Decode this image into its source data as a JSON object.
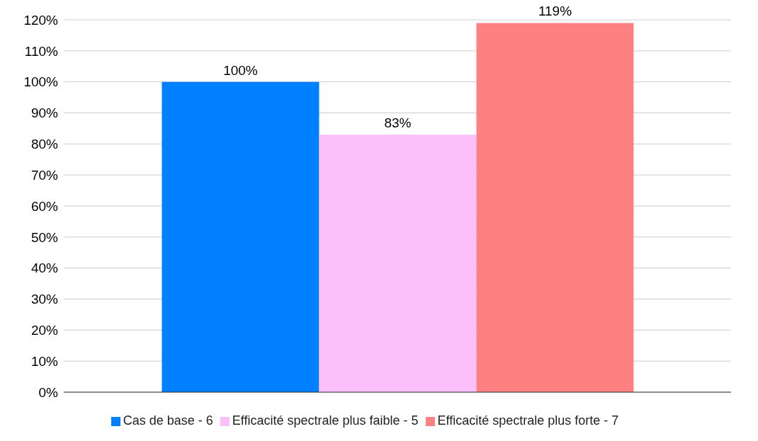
{
  "chart_data": {
    "type": "bar",
    "categories": [
      null
    ],
    "series": [
      {
        "name": "Cas de base - 6",
        "color": "#0080ff",
        "values": [
          100
        ],
        "value_labels": [
          "100%"
        ]
      },
      {
        "name": "Efficacité spectrale plus faible - 5",
        "color": "#fbc0fc",
        "values": [
          83
        ],
        "value_labels": [
          "83%"
        ]
      },
      {
        "name": "Efficacité spectrale plus forte - 7",
        "color": "#ff8080",
        "values": [
          119
        ],
        "value_labels": [
          "119%"
        ]
      }
    ],
    "ylim": [
      0,
      120
    ],
    "yticks": [
      {
        "value": 0,
        "label": "0%"
      },
      {
        "value": 10,
        "label": "10%"
      },
      {
        "value": 20,
        "label": "20%"
      },
      {
        "value": 30,
        "label": "30%"
      },
      {
        "value": 40,
        "label": "40%"
      },
      {
        "value": 50,
        "label": "50%"
      },
      {
        "value": 60,
        "label": "60%"
      },
      {
        "value": 70,
        "label": "70%"
      },
      {
        "value": 80,
        "label": "80%"
      },
      {
        "value": 90,
        "label": "90%"
      },
      {
        "value": 100,
        "label": "100%"
      },
      {
        "value": 110,
        "label": "110%"
      },
      {
        "value": 120,
        "label": "120%"
      }
    ],
    "grid": "y",
    "legend": "bottom"
  }
}
